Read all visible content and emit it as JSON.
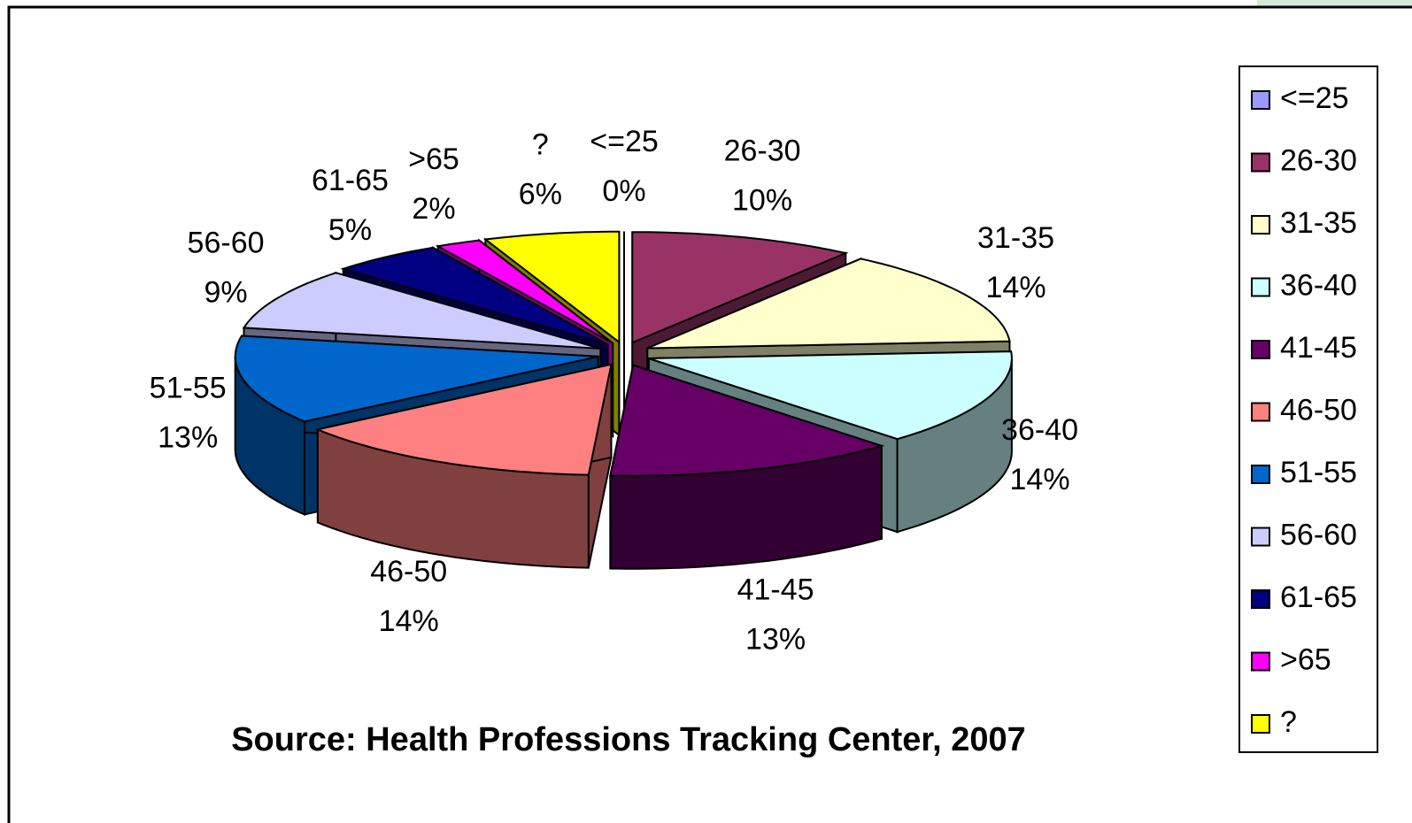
{
  "chart_data": {
    "type": "pie",
    "title": "Source: Health Professions Tracking Center, 2007",
    "categories": [
      "<=25",
      "26-30",
      "31-35",
      "36-40",
      "41-45",
      "46-50",
      "51-55",
      "56-60",
      "61-65",
      ">65",
      "?"
    ],
    "values": [
      0,
      10,
      14,
      14,
      13,
      14,
      13,
      9,
      5,
      2,
      6
    ],
    "value_labels": [
      "0%",
      "10%",
      "14%",
      "14%",
      "13%",
      "14%",
      "13%",
      "9%",
      "5%",
      "2%",
      "6%"
    ],
    "colors": [
      "#9999ff",
      "#993366",
      "#ffffcc",
      "#ccffff",
      "#660066",
      "#ff8080",
      "#0066cc",
      "#ccccff",
      "#000080",
      "#ff00ff",
      "#ffff00"
    ],
    "legend": "right"
  }
}
